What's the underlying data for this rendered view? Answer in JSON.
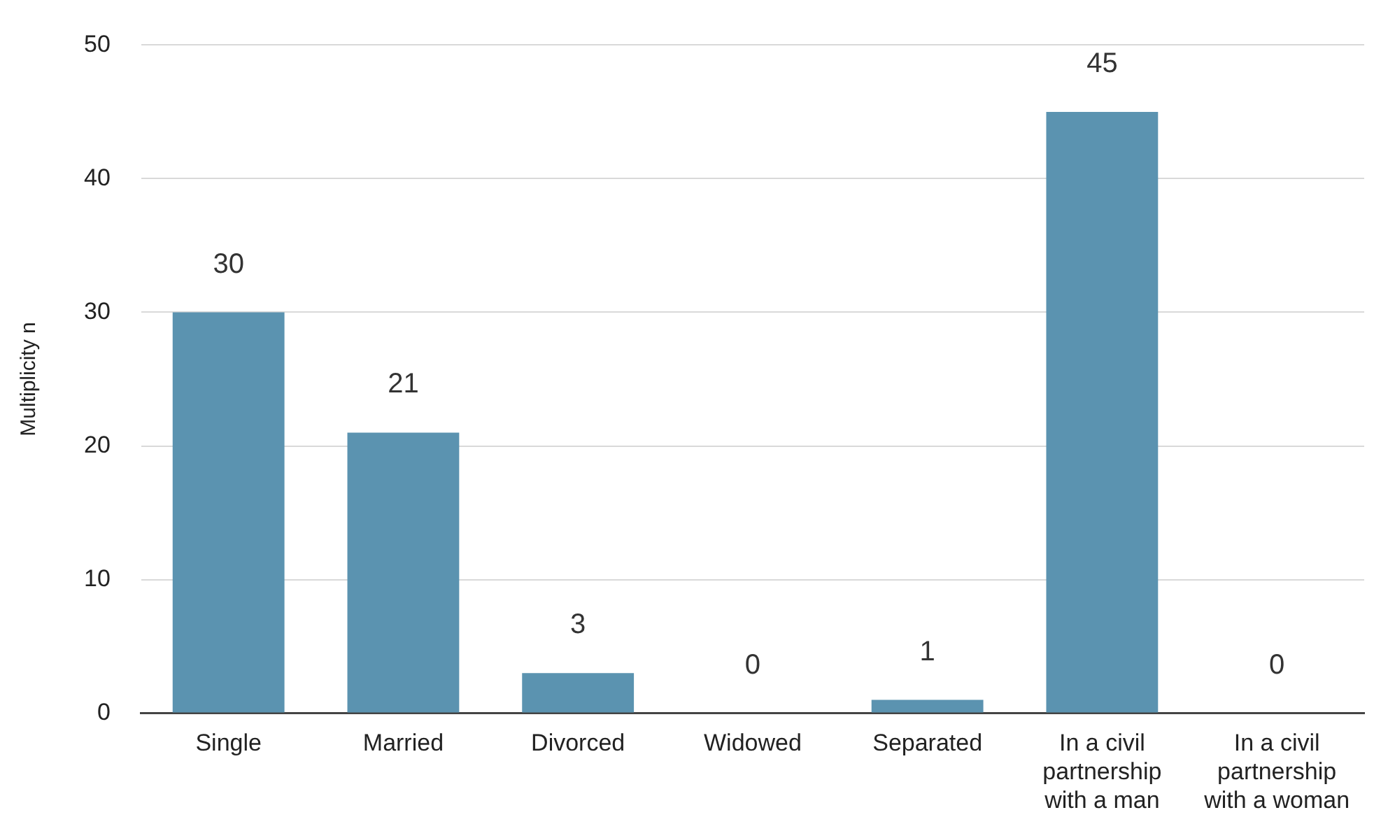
{
  "chart_data": {
    "type": "bar",
    "ylabel": "Multiplicity n",
    "categories": [
      "Single",
      "Married",
      "Divorced",
      "Widowed",
      "Separated",
      "In a civil partnership with a man",
      "In a civil partnership with a woman"
    ],
    "values": [
      30,
      21,
      3,
      0,
      1,
      45,
      0
    ],
    "color": "#5b93b0",
    "ylim": [
      0,
      50
    ],
    "yticks": [
      0,
      10,
      20,
      30,
      40,
      50
    ],
    "grid": "y",
    "data_labels": true
  }
}
